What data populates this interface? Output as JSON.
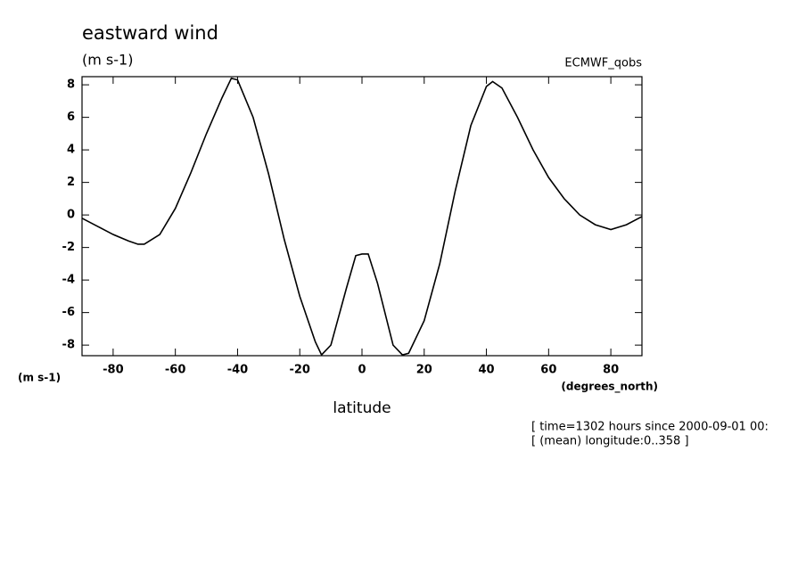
{
  "chart_data": {
    "type": "line",
    "title": "eastward wind",
    "units_label": "(m s-1)",
    "y_units_label": "(m s-1)",
    "source_label": "ECMWF_qobs",
    "xlabel": "latitude",
    "x_units_label": "(degrees_north)",
    "notes": [
      "[ time=1302 hours since 2000-09-01 00:",
      "[ (mean) longitude:0..358 ]"
    ],
    "x": [
      -90,
      -85,
      -80,
      -75,
      -72,
      -70,
      -65,
      -60,
      -55,
      -50,
      -45,
      -42,
      -40,
      -35,
      -30,
      -25,
      -20,
      -15,
      -13,
      -10,
      -5,
      -2,
      0,
      2,
      5,
      10,
      13,
      15,
      20,
      25,
      30,
      35,
      40,
      42,
      45,
      50,
      55,
      60,
      65,
      70,
      75,
      80,
      85,
      90
    ],
    "series": [
      {
        "name": "eastward wind",
        "color": "#000000",
        "values": [
          -0.2,
          -0.7,
          -1.2,
          -1.6,
          -1.8,
          -1.8,
          -1.2,
          0.4,
          2.6,
          5.0,
          7.2,
          8.4,
          8.3,
          6.0,
          2.5,
          -1.5,
          -5.0,
          -7.8,
          -8.6,
          -8.0,
          -4.5,
          -2.5,
          -2.4,
          -2.4,
          -4.2,
          -8.0,
          -8.6,
          -8.5,
          -6.5,
          -3.0,
          1.5,
          5.5,
          7.9,
          8.2,
          7.8,
          6.0,
          4.0,
          2.3,
          1.0,
          0.0,
          -0.6,
          -0.9,
          -0.6,
          -0.1
        ]
      }
    ],
    "xlim": [
      -90,
      90
    ],
    "ylim": [
      -8.65,
      8.5
    ],
    "xticks": [
      -80,
      -60,
      -40,
      -20,
      0,
      20,
      40,
      60,
      80
    ],
    "yticks": [
      -8,
      -6,
      -4,
      -2,
      0,
      2,
      4,
      6,
      8
    ]
  }
}
